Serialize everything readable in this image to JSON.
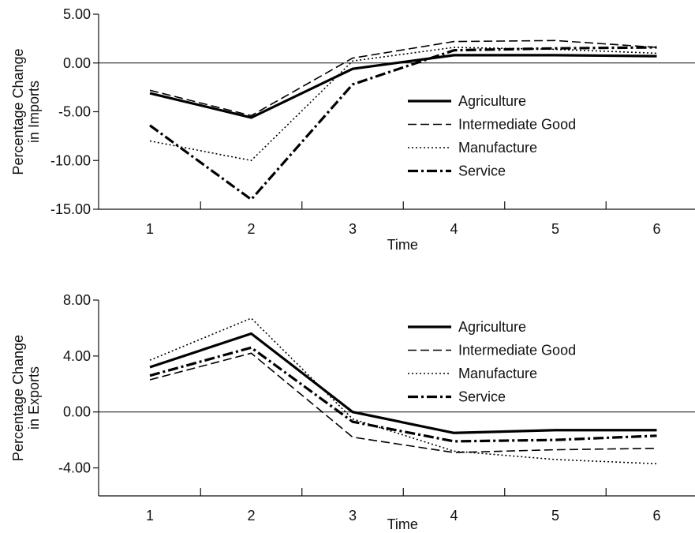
{
  "chart_data": [
    {
      "type": "line",
      "categories": [
        "1",
        "2",
        "3",
        "4",
        "5",
        "6"
      ],
      "xlabel": "Time",
      "ylabel": [
        "Percentage Change",
        "in Imports"
      ],
      "ylim": [
        -15,
        5
      ],
      "yticks": [
        "5.00",
        "0.00",
        "-5.00",
        "-10.00",
        "-15.00"
      ],
      "ytick_values": [
        5,
        0,
        -5,
        -10,
        -15
      ],
      "zero_line": true,
      "grid": false,
      "legend_position": "right-center",
      "series": [
        {
          "name": "Agriculture",
          "style": "solid",
          "values": [
            -3.1,
            -5.6,
            -0.6,
            0.8,
            0.8,
            0.7
          ]
        },
        {
          "name": "Intermediate Good",
          "style": "dashed",
          "values": [
            -2.8,
            -5.4,
            0.5,
            2.2,
            2.3,
            1.6
          ]
        },
        {
          "name": "Manufacture",
          "style": "dotted",
          "values": [
            -8.0,
            -10.0,
            0.2,
            1.6,
            1.4,
            1.0
          ]
        },
        {
          "name": "Service",
          "style": "dashdot",
          "values": [
            -6.4,
            -14.0,
            -2.2,
            1.3,
            1.5,
            1.6
          ]
        }
      ]
    },
    {
      "type": "line",
      "categories": [
        "1",
        "2",
        "3",
        "4",
        "5",
        "6"
      ],
      "xlabel": "Time",
      "ylabel": [
        "Percentage Change",
        "in Exports"
      ],
      "ylim": [
        -6,
        8
      ],
      "yticks": [
        "8.00",
        "4.00",
        "0.00",
        "-4.00"
      ],
      "ytick_values": [
        8,
        4,
        0,
        -4
      ],
      "zero_line": true,
      "grid": false,
      "legend_position": "top-right",
      "series": [
        {
          "name": "Agriculture",
          "style": "solid",
          "values": [
            3.2,
            5.6,
            0.0,
            -1.5,
            -1.3,
            -1.3
          ]
        },
        {
          "name": "Intermediate Good",
          "style": "dashed",
          "values": [
            2.3,
            4.2,
            -1.8,
            -2.9,
            -2.7,
            -2.6
          ]
        },
        {
          "name": "Manufacture",
          "style": "dotted",
          "values": [
            3.7,
            6.7,
            -0.5,
            -2.8,
            -3.4,
            -3.7
          ]
        },
        {
          "name": "Service",
          "style": "dashdot",
          "values": [
            2.6,
            4.6,
            -0.7,
            -2.1,
            -2.0,
            -1.7
          ]
        }
      ]
    }
  ]
}
